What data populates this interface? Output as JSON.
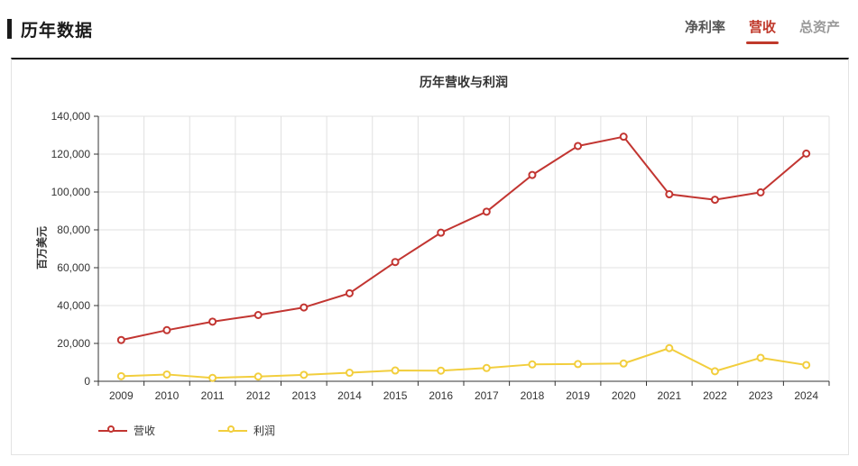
{
  "header": {
    "title": "历年数据",
    "tabs": [
      {
        "label": "净利率",
        "active": false
      },
      {
        "label": "营收",
        "active": true
      },
      {
        "label": "总资产",
        "active": false
      }
    ]
  },
  "colors": {
    "active_tab": "#c0392b",
    "inactive_tab_dark": "#555555",
    "inactive_tab_light": "#999999",
    "axis": "#333333",
    "grid": "#e0e0e0",
    "revenue_series": "#c23531",
    "profit_series": "#f2ce3d"
  },
  "chart_data": {
    "type": "line",
    "title": "历年营收与利润",
    "ylabel": "百万美元",
    "xlabel": "",
    "categories": [
      "2009",
      "2010",
      "2011",
      "2012",
      "2013",
      "2014",
      "2015",
      "2016",
      "2017",
      "2018",
      "2019",
      "2020",
      "2021",
      "2022",
      "2023",
      "2024"
    ],
    "series": [
      {
        "name": "营收",
        "color": "#c23531",
        "marker": "empty-circle",
        "values": [
          21800,
          27000,
          31500,
          35000,
          39000,
          46500,
          63000,
          78500,
          89600,
          109000,
          124300,
          129200,
          98800,
          95900,
          99800,
          120300
        ]
      },
      {
        "name": "利润",
        "color": "#f2ce3d",
        "marker": "empty-circle",
        "values": [
          2700,
          3600,
          1800,
          2500,
          3400,
          4500,
          5700,
          5600,
          7000,
          8900,
          9100,
          9400,
          17500,
          5300,
          12400,
          8600
        ]
      }
    ],
    "ylim": [
      0,
      140000
    ],
    "ytick_step": 20000,
    "grid": true,
    "legend_position": "bottom-left"
  }
}
